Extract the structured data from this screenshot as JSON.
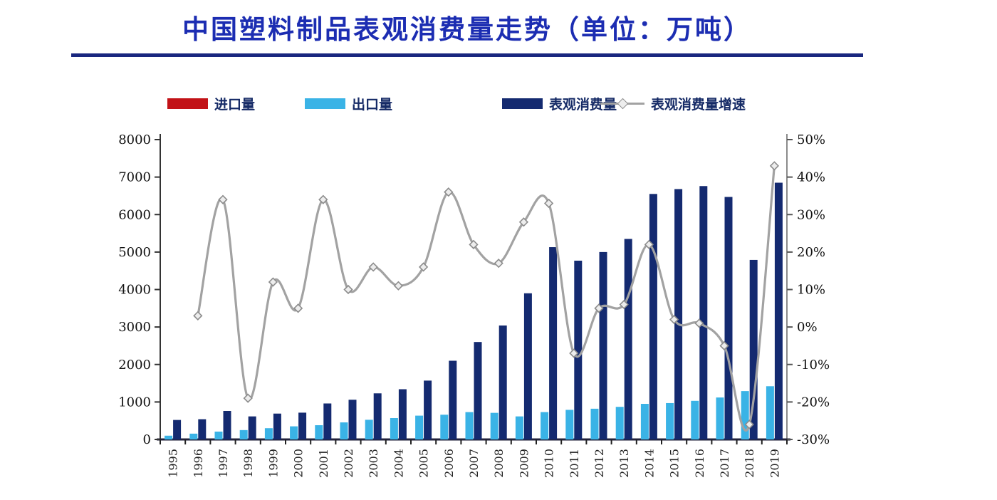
{
  "title": "中国塑料制品表观消费量走势（单位：万吨）",
  "legend": [
    {
      "label": "进口量",
      "type": "bar",
      "color": "#c21217"
    },
    {
      "label": "出口量",
      "type": "bar",
      "color": "#3ab3e6"
    },
    {
      "label": "表观消费量",
      "type": "bar",
      "color": "#142a70"
    },
    {
      "label": "表观消费量增速",
      "type": "line",
      "color": "#a2a2a2"
    }
  ],
  "chart_data": {
    "type": "bar",
    "title": "中国塑料制品表观消费量走势（单位：万吨）",
    "categories": [
      "1995",
      "1996",
      "1997",
      "1998",
      "1999",
      "2000",
      "2001",
      "2002",
      "2003",
      "2004",
      "2005",
      "2006",
      "2007",
      "2008",
      "2009",
      "2010",
      "2011",
      "2012",
      "2013",
      "2014",
      "2015",
      "2016",
      "2017",
      "2018",
      "2019"
    ],
    "series": [
      {
        "name": "进口量",
        "type": "bar",
        "axis": "left",
        "color": "#c21217",
        "values": [
          null,
          null,
          null,
          null,
          null,
          null,
          null,
          null,
          null,
          null,
          null,
          null,
          null,
          null,
          null,
          null,
          null,
          null,
          null,
          null,
          null,
          null,
          null,
          null,
          null
        ]
      },
      {
        "name": "出口量",
        "type": "bar",
        "axis": "left",
        "color": "#3ab3e6",
        "values": [
          100,
          155,
          210,
          250,
          300,
          350,
          380,
          455,
          525,
          570,
          635,
          660,
          730,
          710,
          615,
          730,
          790,
          820,
          870,
          950,
          970,
          1030,
          1120,
          1290,
          1420
        ]
      },
      {
        "name": "表观消费量",
        "type": "bar",
        "axis": "left",
        "color": "#142a70",
        "values": [
          520,
          540,
          760,
          615,
          690,
          715,
          960,
          1060,
          1230,
          1340,
          1570,
          2100,
          2600,
          3040,
          3900,
          5130,
          4770,
          5000,
          5350,
          6550,
          6680,
          6760,
          6470,
          4790,
          6850
        ]
      },
      {
        "name": "表观消费量增速",
        "type": "line",
        "axis": "right",
        "color": "#a2a2a2",
        "values_pct": [
          null,
          3,
          34,
          -19,
          12,
          5,
          34,
          10,
          16,
          11,
          16,
          36,
          22,
          17,
          28,
          33,
          -7,
          5,
          6,
          22,
          2,
          1,
          -5,
          -26,
          43
        ]
      }
    ],
    "y_left": {
      "min": 0,
      "max": 8000,
      "step": 1000,
      "tick_labels": [
        "0",
        "1000",
        "2000",
        "3000",
        "4000",
        "5000",
        "6000",
        "7000",
        "8000"
      ]
    },
    "y_right": {
      "min": -30,
      "max": 50,
      "step": 10,
      "tick_labels": [
        "-30%",
        "-20%",
        "-10%",
        "0%",
        "10%",
        "20%",
        "30%",
        "40%",
        "50%"
      ]
    },
    "grid": false,
    "legend_position": "top",
    "marker": "open-diamond"
  }
}
